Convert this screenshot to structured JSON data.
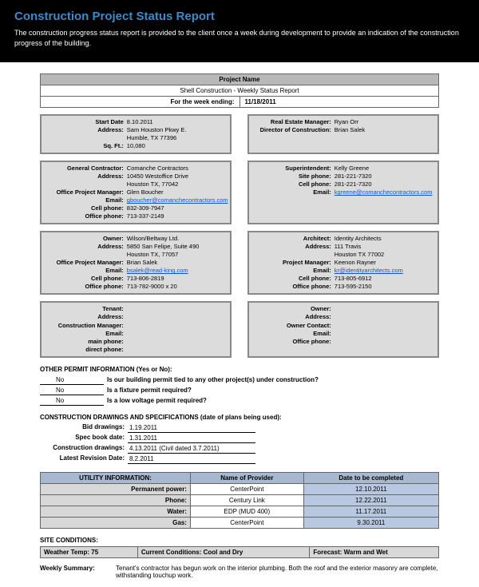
{
  "header": {
    "title": "Construction Project Status Report",
    "subtitle": "The construction progress status report is provided to the client once a week during development to provide an indication of the construction progress of the building."
  },
  "project": {
    "name_label": "Project Name",
    "name_value": "Shell Construction - Weekly Status Report",
    "week_label": "For the week ending:",
    "week_value": "11/18/2011"
  },
  "cards": [
    {
      "left": [
        {
          "lbl": "Start Date",
          "val": "8.10.2011"
        },
        {
          "lbl": "Address:",
          "val": "Sam Houston Pkwy E."
        },
        {
          "lbl": "",
          "val": "Humble, TX 77396"
        },
        {
          "lbl": "Sq. Ft.:",
          "val": "10,080"
        }
      ],
      "right": [
        {
          "lbl": "Real Estate Manager:",
          "val": "Ryan Orr"
        },
        {
          "lbl": "Director of Construction:",
          "val": "Brian Salek"
        }
      ]
    },
    {
      "left": [
        {
          "lbl": "General Contractor:",
          "val": "Comanche Contractors"
        },
        {
          "lbl": "Address:",
          "val": "10450 Westoffice Drive"
        },
        {
          "lbl": "",
          "val": "Houston TX, 77042"
        },
        {
          "lbl": "Office Project Manager:",
          "val": "Glen Boucher"
        },
        {
          "lbl": "Email:",
          "val": "gboucher@comanchecontractors.com",
          "link": true
        },
        {
          "lbl": "Cell phone:",
          "val": "832-309-7947"
        },
        {
          "lbl": "Office phone:",
          "val": "713-337-2149"
        }
      ],
      "right": [
        {
          "lbl": "Superintendent:",
          "val": "Kelly Greene"
        },
        {
          "lbl": "Site phone:",
          "val": "281-221-7320"
        },
        {
          "lbl": "Cell phone:",
          "val": "281-221-7320"
        },
        {
          "lbl": "Email:",
          "val": "kgreene@comanchecontractors.com",
          "link": true
        }
      ]
    },
    {
      "left": [
        {
          "lbl": "Owner:",
          "val": "Wilson/Beltway Ltd."
        },
        {
          "lbl": "Address:",
          "val": "5850 San Felipe, Suite 490"
        },
        {
          "lbl": "",
          "val": "Houston TX, 77057"
        },
        {
          "lbl": "Office Project Manager:",
          "val": "Brian Salek"
        },
        {
          "lbl": "Email:",
          "val": "bsalek@read-king.com",
          "link": true
        },
        {
          "lbl": "Cell phone:",
          "val": "713-806-2819"
        },
        {
          "lbl": "Office phone:",
          "val": "713-782-9000 x 20"
        }
      ],
      "right": [
        {
          "lbl": "Architect:",
          "val": "Identity Architects"
        },
        {
          "lbl": "Address:",
          "val": "111 Travis"
        },
        {
          "lbl": "",
          "val": "Houston TX 77002"
        },
        {
          "lbl": "Project Manager:",
          "val": "Keenon Rayner"
        },
        {
          "lbl": "Email:",
          "val": "kr@identityarchitects.com",
          "link": true
        },
        {
          "lbl": "Cell phone:",
          "val": "713-805-6912"
        },
        {
          "lbl": "Office phone:",
          "val": "713-595-2150"
        }
      ]
    },
    {
      "left": [
        {
          "lbl": "Tenant:",
          "val": ""
        },
        {
          "lbl": "Address:",
          "val": ""
        },
        {
          "lbl": "",
          "val": ""
        },
        {
          "lbl": "Construction Manager:",
          "val": ""
        },
        {
          "lbl": "Email:",
          "val": ""
        },
        {
          "lbl": "main phone:",
          "val": ""
        },
        {
          "lbl": "direct phone:",
          "val": ""
        }
      ],
      "right": [
        {
          "lbl": "Owner:",
          "val": ""
        },
        {
          "lbl": "Address:",
          "val": ""
        },
        {
          "lbl": "",
          "val": ""
        },
        {
          "lbl": "Owner Contact:",
          "val": ""
        },
        {
          "lbl": "Email:",
          "val": ""
        },
        {
          "lbl": "Office phone:",
          "val": ""
        }
      ]
    }
  ],
  "permits": {
    "title": "OTHER PERMIT INFORMATION (Yes or No):",
    "rows": [
      {
        "ans": "No",
        "q": "Is our building permit tied to any other project(s) under construction?"
      },
      {
        "ans": "No",
        "q": "Is a fixture permit required?"
      },
      {
        "ans": "No",
        "q": "Is a low voltage permit required?"
      }
    ]
  },
  "drawings": {
    "title": "CONSTRUCTION DRAWINGS AND SPECIFICATIONS (date of plans being used):",
    "rows": [
      {
        "lbl": "Bid drawings:",
        "val": "1.19.2011"
      },
      {
        "lbl": "Spec book date:",
        "val": "1.31.2011"
      },
      {
        "lbl": "Construction drawings:",
        "val": "4.13.2011 (Civil dated 3.7.2011)"
      },
      {
        "lbl": "Latest Revision Date:",
        "val": "8.2.2011"
      }
    ]
  },
  "utility": {
    "headers": [
      "UTILITY INFORMATION:",
      "Name of Provider",
      "Date to be completed"
    ],
    "rows": [
      {
        "cat": "Permanent power:",
        "prov": "CenterPoint",
        "date": "12.10.2011"
      },
      {
        "cat": "Phone:",
        "prov": "Century Link",
        "date": "12.22.2011"
      },
      {
        "cat": "Water:",
        "prov": "EDP (MUD 400)",
        "date": "11.17.2011"
      },
      {
        "cat": "Gas:",
        "prov": "CenterPoint",
        "date": "9.30.2011"
      }
    ]
  },
  "site": {
    "title": "SITE CONDITIONS:",
    "cells": [
      "Weather Temp: 75",
      "Current Conditions: Cool and Dry",
      "Forecast: Warm and Wet"
    ]
  },
  "summary": {
    "label": "Weekly Summary:",
    "text": "Tenant's contractor has begun work on the interior plumbing. Both the roof and the exterior masonry are complete, withstanding touchup work."
  }
}
